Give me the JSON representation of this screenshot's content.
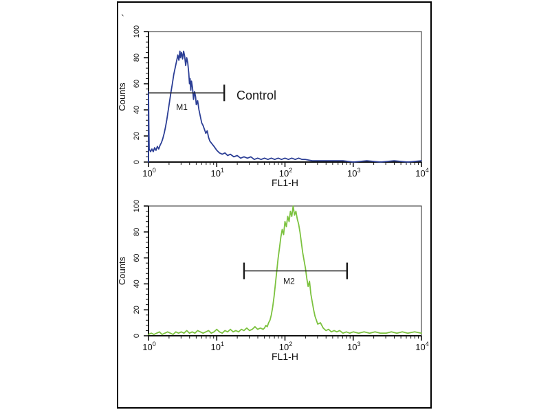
{
  "figure": {
    "background": "#ffffff",
    "border_color": "#000000",
    "stray_mark": "`"
  },
  "chart_data": [
    {
      "type": "line",
      "subtype": "flow-cytometry-histogram",
      "panel_id": "top",
      "xlabel": "FL1-H",
      "ylabel": "Counts",
      "x_scale": "log10",
      "xlim_log": [
        0,
        4
      ],
      "x_tick_base": "10",
      "x_tick_exponents": [
        0,
        1,
        2,
        3,
        4
      ],
      "ylim": [
        0,
        100
      ],
      "y_ticks": [
        0,
        20,
        40,
        60,
        80,
        100
      ],
      "grid": false,
      "legend": "none",
      "series": [
        {
          "name": "Control",
          "color": "#2b3e95",
          "points": [
            [
              0.0,
              0
            ],
            [
              0.0,
              54
            ],
            [
              0.005,
              28
            ],
            [
              0.01,
              10
            ],
            [
              0.03,
              8
            ],
            [
              0.05,
              10
            ],
            [
              0.07,
              8
            ],
            [
              0.09,
              11
            ],
            [
              0.11,
              9
            ],
            [
              0.13,
              12
            ],
            [
              0.15,
              10
            ],
            [
              0.17,
              13
            ],
            [
              0.19,
              15
            ],
            [
              0.21,
              18
            ],
            [
              0.23,
              22
            ],
            [
              0.25,
              27
            ],
            [
              0.27,
              33
            ],
            [
              0.29,
              40
            ],
            [
              0.31,
              47
            ],
            [
              0.33,
              54
            ],
            [
              0.35,
              60
            ],
            [
              0.37,
              67
            ],
            [
              0.39,
              72
            ],
            [
              0.41,
              77
            ],
            [
              0.43,
              82
            ],
            [
              0.445,
              78
            ],
            [
              0.46,
              85
            ],
            [
              0.47,
              80
            ],
            [
              0.485,
              84
            ],
            [
              0.5,
              79
            ],
            [
              0.515,
              85
            ],
            [
              0.53,
              81
            ],
            [
              0.545,
              74
            ],
            [
              0.56,
              80
            ],
            [
              0.575,
              76
            ],
            [
              0.59,
              68
            ],
            [
              0.6,
              60
            ],
            [
              0.61,
              64
            ],
            [
              0.62,
              55
            ],
            [
              0.63,
              62
            ],
            [
              0.645,
              57
            ],
            [
              0.66,
              48
            ],
            [
              0.675,
              54
            ],
            [
              0.69,
              50
            ],
            [
              0.7,
              44
            ],
            [
              0.72,
              47
            ],
            [
              0.74,
              40
            ],
            [
              0.76,
              35
            ],
            [
              0.78,
              30
            ],
            [
              0.8,
              28
            ],
            [
              0.82,
              25
            ],
            [
              0.84,
              22
            ],
            [
              0.86,
              24
            ],
            [
              0.88,
              19
            ],
            [
              0.9,
              16
            ],
            [
              0.93,
              14
            ],
            [
              0.96,
              12
            ],
            [
              1.0,
              9
            ],
            [
              1.04,
              7
            ],
            [
              1.08,
              6
            ],
            [
              1.12,
              7
            ],
            [
              1.16,
              5
            ],
            [
              1.2,
              6
            ],
            [
              1.25,
              4
            ],
            [
              1.3,
              5
            ],
            [
              1.35,
              3
            ],
            [
              1.4,
              4
            ],
            [
              1.45,
              3
            ],
            [
              1.5,
              4
            ],
            [
              1.55,
              2
            ],
            [
              1.6,
              3
            ],
            [
              1.65,
              2
            ],
            [
              1.7,
              3
            ],
            [
              1.75,
              2
            ],
            [
              1.8,
              3
            ],
            [
              1.85,
              2
            ],
            [
              1.9,
              3
            ],
            [
              1.95,
              2
            ],
            [
              2.0,
              3
            ],
            [
              2.05,
              2
            ],
            [
              2.1,
              3
            ],
            [
              2.15,
              2
            ],
            [
              2.2,
              3
            ],
            [
              2.25,
              2
            ],
            [
              2.3,
              2
            ],
            [
              2.4,
              1
            ],
            [
              2.5,
              1
            ],
            [
              2.6,
              1
            ],
            [
              2.7,
              1
            ],
            [
              2.85,
              1
            ],
            [
              3.0,
              0
            ],
            [
              3.2,
              1
            ],
            [
              3.4,
              0
            ],
            [
              3.6,
              1
            ],
            [
              3.8,
              0
            ],
            [
              4.0,
              1
            ]
          ]
        }
      ],
      "marker": {
        "label": "M1",
        "label_x_log": 0.49,
        "label_count": 40,
        "y_count": 53,
        "x_start_log": 0.0,
        "x_end_log": 1.11,
        "caps": [
          "right"
        ],
        "annotation": {
          "text": "Control",
          "x_log": 1.29,
          "count": 48
        }
      }
    },
    {
      "type": "line",
      "subtype": "flow-cytometry-histogram",
      "panel_id": "bottom",
      "xlabel": "FL1-H",
      "ylabel": "Counts",
      "x_scale": "log10",
      "xlim_log": [
        0,
        4
      ],
      "x_tick_base": "10",
      "x_tick_exponents": [
        0,
        1,
        2,
        3,
        4
      ],
      "ylim": [
        0,
        100
      ],
      "y_ticks": [
        0,
        20,
        40,
        60,
        80,
        100
      ],
      "grid": false,
      "legend": "none",
      "series": [
        {
          "name": "",
          "color": "#7cc23f",
          "points": [
            [
              0.0,
              1
            ],
            [
              0.04,
              2
            ],
            [
              0.08,
              1
            ],
            [
              0.12,
              2
            ],
            [
              0.16,
              3
            ],
            [
              0.2,
              1
            ],
            [
              0.24,
              2
            ],
            [
              0.28,
              3
            ],
            [
              0.32,
              2
            ],
            [
              0.36,
              1
            ],
            [
              0.4,
              3
            ],
            [
              0.44,
              2
            ],
            [
              0.48,
              3
            ],
            [
              0.52,
              2
            ],
            [
              0.56,
              4
            ],
            [
              0.6,
              2
            ],
            [
              0.64,
              3
            ],
            [
              0.68,
              2
            ],
            [
              0.72,
              4
            ],
            [
              0.76,
              3
            ],
            [
              0.8,
              2
            ],
            [
              0.84,
              3
            ],
            [
              0.88,
              4
            ],
            [
              0.92,
              2
            ],
            [
              0.96,
              3
            ],
            [
              1.0,
              5
            ],
            [
              1.04,
              3
            ],
            [
              1.08,
              2
            ],
            [
              1.12,
              4
            ],
            [
              1.16,
              3
            ],
            [
              1.2,
              5
            ],
            [
              1.24,
              3
            ],
            [
              1.28,
              4
            ],
            [
              1.32,
              3
            ],
            [
              1.36,
              5
            ],
            [
              1.4,
              4
            ],
            [
              1.44,
              6
            ],
            [
              1.48,
              4
            ],
            [
              1.52,
              5
            ],
            [
              1.56,
              7
            ],
            [
              1.6,
              5
            ],
            [
              1.64,
              6
            ],
            [
              1.68,
              5
            ],
            [
              1.7,
              6
            ],
            [
              1.72,
              8
            ],
            [
              1.74,
              7
            ],
            [
              1.76,
              10
            ],
            [
              1.78,
              12
            ],
            [
              1.8,
              16
            ],
            [
              1.82,
              22
            ],
            [
              1.84,
              30
            ],
            [
              1.86,
              40
            ],
            [
              1.88,
              50
            ],
            [
              1.9,
              60
            ],
            [
              1.92,
              68
            ],
            [
              1.94,
              76
            ],
            [
              1.96,
              82
            ],
            [
              1.98,
              78
            ],
            [
              2.0,
              88
            ],
            [
              2.02,
              84
            ],
            [
              2.04,
              92
            ],
            [
              2.06,
              88
            ],
            [
              2.08,
              96
            ],
            [
              2.1,
              92
            ],
            [
              2.12,
              100
            ],
            [
              2.14,
              93
            ],
            [
              2.16,
              96
            ],
            [
              2.18,
              90
            ],
            [
              2.2,
              86
            ],
            [
              2.22,
              80
            ],
            [
              2.24,
              72
            ],
            [
              2.26,
              64
            ],
            [
              2.28,
              58
            ],
            [
              2.3,
              52
            ],
            [
              2.32,
              44
            ],
            [
              2.34,
              38
            ],
            [
              2.36,
              42
            ],
            [
              2.38,
              32
            ],
            [
              2.4,
              26
            ],
            [
              2.42,
              20
            ],
            [
              2.44,
              15
            ],
            [
              2.46,
              12
            ],
            [
              2.48,
              9
            ],
            [
              2.52,
              10
            ],
            [
              2.56,
              6
            ],
            [
              2.6,
              4
            ],
            [
              2.64,
              5
            ],
            [
              2.68,
              3
            ],
            [
              2.72,
              4
            ],
            [
              2.76,
              3
            ],
            [
              2.8,
              4
            ],
            [
              2.85,
              2
            ],
            [
              2.9,
              3
            ],
            [
              2.95,
              2
            ],
            [
              3.0,
              3
            ],
            [
              3.08,
              2
            ],
            [
              3.16,
              3
            ],
            [
              3.24,
              2
            ],
            [
              3.32,
              3
            ],
            [
              3.4,
              2
            ],
            [
              3.48,
              2
            ],
            [
              3.56,
              3
            ],
            [
              3.64,
              2
            ],
            [
              3.72,
              3
            ],
            [
              3.8,
              2
            ],
            [
              3.9,
              3
            ],
            [
              4.0,
              2
            ]
          ]
        }
      ],
      "marker": {
        "label": "M2",
        "label_x_log": 2.06,
        "label_count": 40,
        "y_count": 50,
        "x_start_log": 1.4,
        "x_end_log": 2.91,
        "caps": [
          "left",
          "right"
        ]
      }
    }
  ]
}
